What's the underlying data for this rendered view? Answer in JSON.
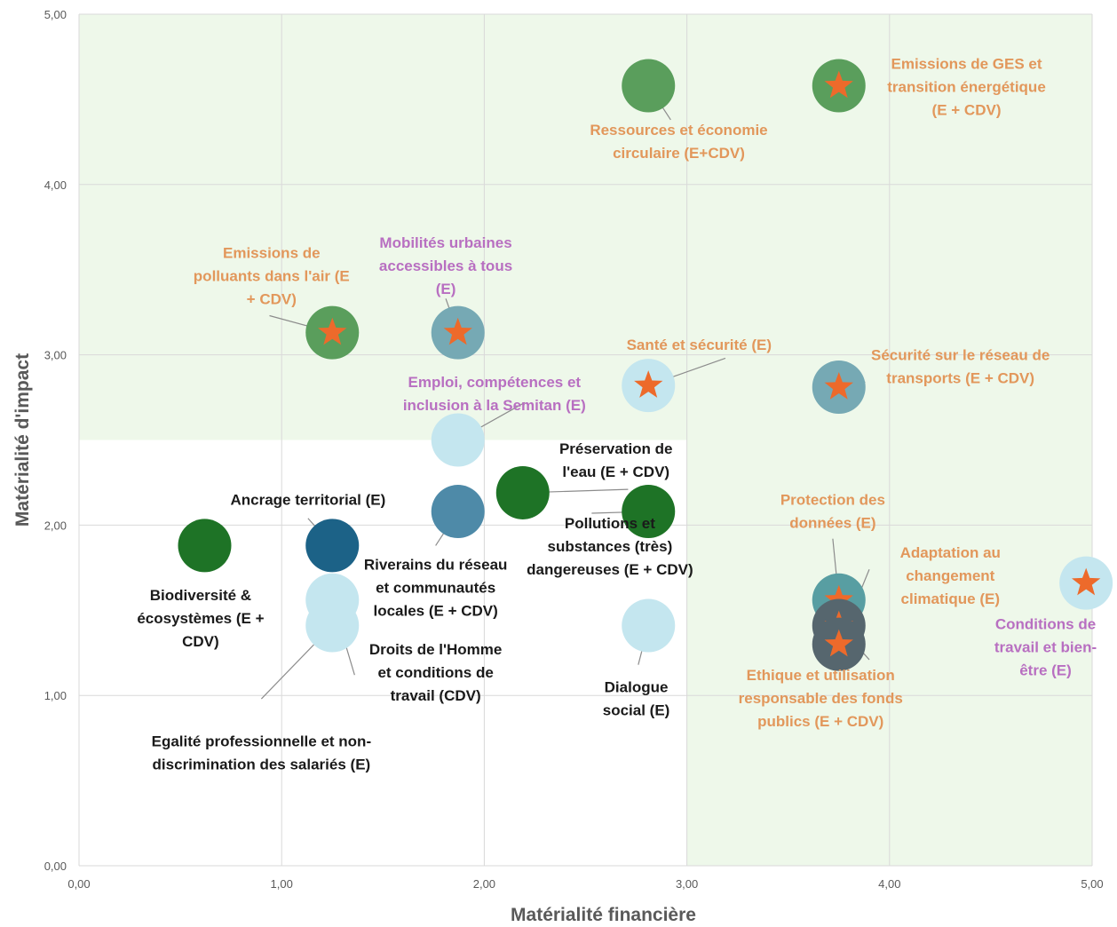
{
  "chart_data": {
    "type": "scatter",
    "title": "",
    "xlabel": "Matérialité financière",
    "ylabel": "Matérialité d'impact",
    "xlim": [
      0,
      5
    ],
    "ylim": [
      0,
      5
    ],
    "x_ticks": [
      "0,00",
      "1,00",
      "2,00",
      "3,00",
      "4,00",
      "5,00"
    ],
    "y_ticks": [
      "0,00",
      "1,00",
      "2,00",
      "3,00",
      "4,00",
      "5,00"
    ],
    "grid": true,
    "colors": {
      "zone": "#eef8ea",
      "label_orange": "#e2975b",
      "label_purple": "#b86fc1",
      "label_black": "#1a1a1a",
      "star": "#ed6a2b",
      "gridline": "#d9d9d9"
    },
    "highlight_zones": [
      {
        "x": [
          0,
          5
        ],
        "y": [
          2.5,
          5
        ]
      },
      {
        "x": [
          3,
          5
        ],
        "y": [
          0,
          5
        ]
      }
    ],
    "points": [
      {
        "x": 2.81,
        "y": 4.58,
        "color": "#5a9e5c",
        "star": false,
        "label": [
          "Ressources et économie",
          "circulaire (E+CDV)"
        ],
        "label_color": "#e2975b",
        "label_x": 2.96,
        "label_y": 4.29,
        "leader_to": [
          2.92,
          4.38
        ]
      },
      {
        "x": 3.75,
        "y": 4.58,
        "color": "#5a9e5c",
        "star": true,
        "label": [
          "Emissions de GES et",
          "transition énergétique",
          "(E + CDV)"
        ],
        "label_color": "#e2975b",
        "label_x": 4.38,
        "label_y": 4.68,
        "leader_to": [
          3.88,
          4.58
        ]
      },
      {
        "x": 1.25,
        "y": 3.13,
        "color": "#5a9e5c",
        "star": true,
        "label": [
          "Emissions de",
          "polluants dans l'air (E",
          "+ CDV)"
        ],
        "label_color": "#e2975b",
        "label_x": 0.95,
        "label_y": 3.57,
        "leader_to": [
          0.94,
          3.23
        ]
      },
      {
        "x": 1.87,
        "y": 3.13,
        "color": "#76a9b4",
        "star": true,
        "label": [
          "Mobilités urbaines",
          "accessibles à tous",
          "(E)"
        ],
        "label_color": "#b86fc1",
        "label_x": 1.81,
        "label_y": 3.63,
        "leader_to": [
          1.81,
          3.33
        ]
      },
      {
        "x": 2.81,
        "y": 2.82,
        "color": "#c4e6ef",
        "star": true,
        "label": [
          "Santé et sécurité (E)"
        ],
        "label_color": "#e2975b",
        "label_x": 3.06,
        "label_y": 3.03,
        "leader_to": [
          3.19,
          2.98
        ]
      },
      {
        "x": 3.75,
        "y": 2.81,
        "color": "#76a9b4",
        "star": true,
        "label": [
          "Sécurité sur le réseau de",
          "transports (E + CDV)"
        ],
        "label_color": "#e2975b",
        "label_x": 4.35,
        "label_y": 2.97,
        "leader_to": [
          3.88,
          2.84
        ]
      },
      {
        "x": 1.87,
        "y": 2.5,
        "color": "#c4e6ef",
        "star": false,
        "label": [
          "Emploi, compétences et",
          "inclusion à la Semitan (E)"
        ],
        "label_color": "#b86fc1",
        "label_x": 2.05,
        "label_y": 2.81,
        "leader_to": [
          2.2,
          2.72
        ]
      },
      {
        "x": 2.19,
        "y": 2.19,
        "color": "#1e7326",
        "star": false,
        "label": [
          "Préservation de",
          "l'eau (E + CDV)"
        ],
        "label_color": "#1a1a1a",
        "label_x": 2.65,
        "label_y": 2.42,
        "leader_to": [
          2.71,
          2.21
        ]
      },
      {
        "x": 2.81,
        "y": 2.08,
        "color": "#1e7326",
        "star": false,
        "label": [
          "Pollutions et",
          "substances (très)",
          "dangereuses (E + CDV)"
        ],
        "label_color": "#1a1a1a",
        "label_x": 2.62,
        "label_y": 1.98,
        "leader_to": [
          2.53,
          2.07
        ]
      },
      {
        "x": 1.87,
        "y": 2.08,
        "color": "#4e8aa8",
        "star": false,
        "label": [
          "Riverains du réseau",
          "et communautés",
          "locales (E + CDV)"
        ],
        "label_color": "#1a1a1a",
        "label_x": 1.76,
        "label_y": 1.74,
        "leader_to": [
          1.76,
          1.88
        ]
      },
      {
        "x": 1.25,
        "y": 1.88,
        "color": "#1c6287",
        "star": false,
        "label": [
          "Ancrage territorial (E)"
        ],
        "label_color": "#1a1a1a",
        "label_x": 1.13,
        "label_y": 2.12,
        "leader_to": [
          1.13,
          2.04
        ]
      },
      {
        "x": 0.62,
        "y": 1.88,
        "color": "#1e7326",
        "star": false,
        "label": [
          "Biodiversité &",
          "écosystèmes (E +",
          "CDV)"
        ],
        "label_color": "#1a1a1a",
        "label_x": 0.6,
        "label_y": 1.56,
        "leader_to": [
          0.6,
          1.76
        ]
      },
      {
        "x": 1.25,
        "y": 1.56,
        "color": "#c4e6ef",
        "star": false,
        "label": [
          "Droits de l'Homme",
          "et conditions de",
          "travail (CDV)"
        ],
        "label_color": "#1a1a1a",
        "label_x": 1.76,
        "label_y": 1.24,
        "leader_to": [
          1.36,
          1.12
        ]
      },
      {
        "x": 1.25,
        "y": 1.41,
        "color": "#c4e6ef",
        "star": false,
        "label": [
          "Egalité professionnelle et non-",
          "discrimination des salariés (E)"
        ],
        "label_color": "#1a1a1a",
        "label_x": 0.9,
        "label_y": 0.7,
        "leader_to": [
          0.9,
          0.98
        ]
      },
      {
        "x": 2.81,
        "y": 1.41,
        "color": "#c4e6ef",
        "star": false,
        "label": [
          "Dialogue",
          "social (E)"
        ],
        "label_color": "#1a1a1a",
        "label_x": 2.75,
        "label_y": 1.02,
        "leader_to": [
          2.76,
          1.18
        ]
      },
      {
        "x": 3.75,
        "y": 1.56,
        "color": "#589ea2",
        "star": true,
        "label": [
          "Protection des",
          "données (E)"
        ],
        "label_color": "#e2975b",
        "label_x": 3.72,
        "label_y": 2.12,
        "leader_to": [
          3.72,
          1.92
        ]
      },
      {
        "x": 3.75,
        "y": 1.41,
        "color": "#56666e",
        "star": true,
        "label": [
          "Ethique et utilisation",
          "responsable des fonds",
          "publics (E + CDV)"
        ],
        "label_color": "#e2975b",
        "label_x": 3.66,
        "label_y": 1.09,
        "leader_to": [
          3.9,
          1.21
        ]
      },
      {
        "x": 3.75,
        "y": 1.3,
        "color": "#56666e",
        "star": true,
        "label": [
          "Adaptation au",
          "changement",
          "climatique (E)"
        ],
        "label_color": "#e2975b",
        "label_x": 4.3,
        "label_y": 1.81,
        "leader_to": [
          3.9,
          1.74
        ]
      },
      {
        "x": 4.97,
        "y": 1.66,
        "color": "#c4e6ef",
        "star": true,
        "label": [
          "Conditions de",
          "travail et bien-",
          "être (E)"
        ],
        "label_color": "#b86fc1",
        "label_x": 4.77,
        "label_y": 1.39,
        "leader_to": [
          4.94,
          1.56
        ]
      }
    ]
  }
}
